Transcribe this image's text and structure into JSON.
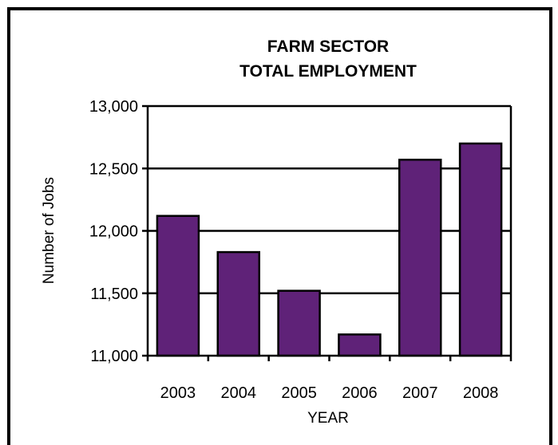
{
  "chart_data": {
    "type": "bar",
    "title_lines": [
      "FARM SECTOR",
      "TOTAL EMPLOYMENT"
    ],
    "xlabel": "YEAR",
    "ylabel": "Number of Jobs",
    "categories": [
      "2003",
      "2004",
      "2005",
      "2006",
      "2007",
      "2008"
    ],
    "values": [
      12120,
      11830,
      11520,
      11170,
      12570,
      12700
    ],
    "ylim": [
      11000,
      13000
    ],
    "yticks": [
      11000,
      11500,
      12000,
      12500,
      13000
    ],
    "ytick_labels": [
      "11,000",
      "11,500",
      "12,000",
      "12,500",
      "13,000"
    ],
    "grid": true,
    "bar_color": "#5f2278"
  }
}
